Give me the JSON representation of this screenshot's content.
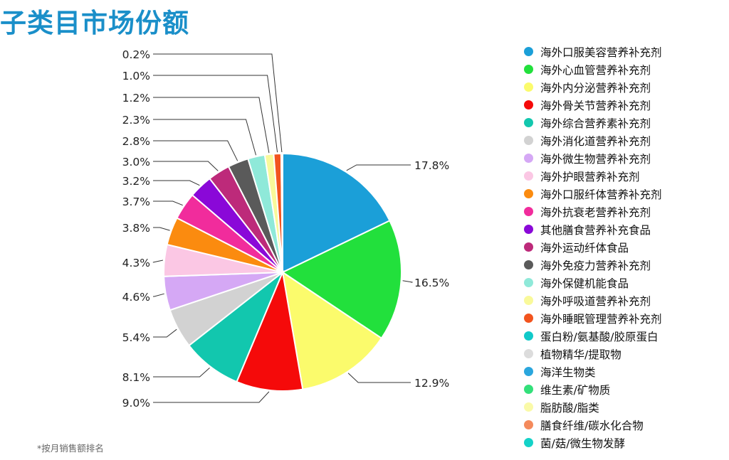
{
  "title": "子类目市场份额",
  "footnote": "*按月销售额排名",
  "chart_data": {
    "type": "pie",
    "slices": [
      {
        "label": "海外口服美容营养补充剂",
        "value": 17.8,
        "display": "17.8%",
        "color": "#1b9fd8"
      },
      {
        "label": "海外心血管营养补充剂",
        "value": 16.5,
        "display": "16.5%",
        "color": "#22e03c"
      },
      {
        "label": "海外内分泌营养补充剂",
        "value": 12.9,
        "display": "12.9%",
        "color": "#fbfb6c"
      },
      {
        "label": "海外骨关节营养补充剂",
        "value": 9.0,
        "display": "9.0%",
        "color": "#f50a0a"
      },
      {
        "label": "海外综合营养素补充剂",
        "value": 8.1,
        "display": "8.1%",
        "color": "#12c7ae"
      },
      {
        "label": "海外消化道营养补充剂",
        "value": 5.4,
        "display": "5.4%",
        "color": "#d2d2d2"
      },
      {
        "label": "海外微生物营养补充剂",
        "value": 4.6,
        "display": "4.6%",
        "color": "#d5a8f5"
      },
      {
        "label": "海外护眼营养补充剂",
        "value": 4.3,
        "display": "4.3%",
        "color": "#fbc7e4"
      },
      {
        "label": "海外口服纤体营养补充剂",
        "value": 3.8,
        "display": "3.8%",
        "color": "#fb8b0f"
      },
      {
        "label": "海外抗衰老营养补充剂",
        "value": 3.7,
        "display": "3.7%",
        "color": "#f12c9c"
      },
      {
        "label": "其他膳食营养补充食品",
        "value": 3.2,
        "display": "3.2%",
        "color": "#8a08d8"
      },
      {
        "label": "海外运动纤体食品",
        "value": 3.0,
        "display": "3.0%",
        "color": "#bd2a7a"
      },
      {
        "label": "海外免疫力营养补充剂",
        "value": 2.8,
        "display": "2.8%",
        "color": "#5a5a5a"
      },
      {
        "label": "海外保健机能食品",
        "value": 2.3,
        "display": "2.3%",
        "color": "#8fe9d9"
      },
      {
        "label": "海外呼吸道营养补充剂",
        "value": 1.2,
        "display": "1.2%",
        "color": "#f9f99a"
      },
      {
        "label": "海外睡眠管理营养补充剂",
        "value": 1.0,
        "display": "1.0%",
        "color": "#f2541e"
      },
      {
        "label": "蛋白粉/氨基酸/胶原蛋白",
        "value": 0.2,
        "display": "0.2%",
        "color": "#10c9c9"
      }
    ],
    "legend": [
      {
        "label": "海外口服美容营养补充剂",
        "color": "#1b9fd8"
      },
      {
        "label": "海外心血管营养补充剂",
        "color": "#22e03c"
      },
      {
        "label": "海外内分泌营养补充剂",
        "color": "#fbfb6c"
      },
      {
        "label": "海外骨关节营养补充剂",
        "color": "#f50a0a"
      },
      {
        "label": "海外综合营养素补充剂",
        "color": "#12c7ae"
      },
      {
        "label": "海外消化道营养补充剂",
        "color": "#d2d2d2"
      },
      {
        "label": "海外微生物营养补充剂",
        "color": "#d5a8f5"
      },
      {
        "label": "海外护眼营养补充剂",
        "color": "#fbc7e4"
      },
      {
        "label": "海外口服纤体营养补充剂",
        "color": "#fb8b0f"
      },
      {
        "label": "海外抗衰老营养补充剂",
        "color": "#f12c9c"
      },
      {
        "label": "其他膳食营养补充食品",
        "color": "#8a08d8"
      },
      {
        "label": "海外运动纤体食品",
        "color": "#bd2a7a"
      },
      {
        "label": "海外免疫力营养补充剂",
        "color": "#5a5a5a"
      },
      {
        "label": "海外保健机能食品",
        "color": "#8fe9d9"
      },
      {
        "label": "海外呼吸道营养补充剂",
        "color": "#f9f99a"
      },
      {
        "label": "海外睡眠管理营养补充剂",
        "color": "#f2541e"
      },
      {
        "label": "蛋白粉/氨基酸/胶原蛋白",
        "color": "#10c9c9"
      },
      {
        "label": "植物精华/提取物",
        "color": "#dcdcdc"
      },
      {
        "label": "海洋生物类",
        "color": "#2aa6dd"
      },
      {
        "label": "维生素/矿物质",
        "color": "#33e07a"
      },
      {
        "label": "脂肪酸/脂类",
        "color": "#fafaa8"
      },
      {
        "label": "膳食纤维/碳水化合物",
        "color": "#f48a5c"
      },
      {
        "label": "菌/菇/微生物发酵",
        "color": "#14d2c8"
      }
    ]
  }
}
